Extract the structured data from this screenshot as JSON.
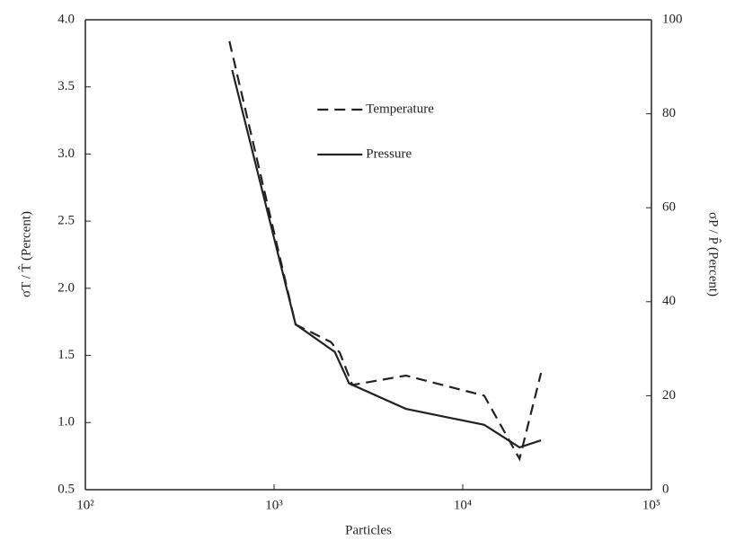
{
  "chart_data": {
    "type": "line",
    "x_label": "Particles",
    "y_label": "σT / T̂ (Percent)",
    "y2_label": "σP / P̂ (Percent)",
    "xscale": "log",
    "xlim": [
      100,
      100000
    ],
    "xticks": [
      {
        "value": 100,
        "label": "10²"
      },
      {
        "value": 1000,
        "label": "10³"
      },
      {
        "value": 10000,
        "label": "10⁴"
      },
      {
        "value": 100000,
        "label": "10⁵"
      }
    ],
    "ylim": [
      0.5,
      4
    ],
    "yticks": [
      {
        "value": 0.5,
        "label": "0.5"
      },
      {
        "value": 1,
        "label": "1.0"
      },
      {
        "value": 1.5,
        "label": "1.5"
      },
      {
        "value": 2,
        "label": "2.0"
      },
      {
        "value": 2.5,
        "label": "2.5"
      },
      {
        "value": 3,
        "label": "3.0"
      },
      {
        "value": 3.5,
        "label": "3.5"
      },
      {
        "value": 4,
        "label": "4.0"
      }
    ],
    "y2lim": [
      0,
      100
    ],
    "y2ticks": [
      0,
      20,
      40,
      60,
      80,
      100
    ],
    "legend": "upper center",
    "series": [
      {
        "name": "Temperature",
        "color": "#222222",
        "dash": true,
        "x": [
          580,
          1300,
          2000,
          2230,
          2600,
          5000,
          13000,
          20000,
          26000
        ],
        "values": [
          3.84,
          1.73,
          1.6,
          1.52,
          1.28,
          1.35,
          1.2,
          0.73,
          1.37
        ]
      },
      {
        "name": "Pressure",
        "color": "#222222",
        "dash": false,
        "axis": "y2",
        "x": [
          600,
          1300,
          2100,
          2500,
          5000,
          13000,
          20000,
          26000
        ],
        "values": [
          89.3,
          35.2,
          29.3,
          22.6,
          17.2,
          13.8,
          9.0,
          10.5
        ]
      }
    ]
  }
}
